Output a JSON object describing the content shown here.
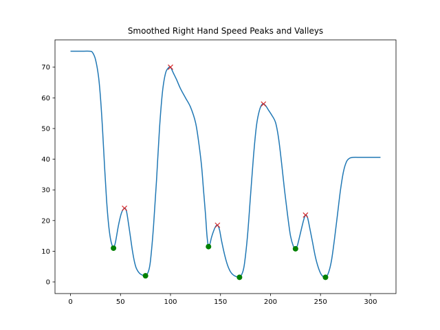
{
  "chart_data": {
    "type": "line",
    "title": "Smoothed Right Hand Speed Peaks and Valleys",
    "xlabel": "",
    "ylabel": "",
    "xlim": [
      -15.5,
      325.5
    ],
    "ylim": [
      -3.8,
      78.9
    ],
    "x_ticks": [
      0,
      50,
      100,
      150,
      200,
      250,
      300
    ],
    "y_ticks": [
      0,
      10,
      20,
      30,
      40,
      50,
      60,
      70
    ],
    "grid": false,
    "legend": "none",
    "series": [
      {
        "type": "line",
        "color": "#1f77b4",
        "points": [
          [
            0,
            75.2
          ],
          [
            10,
            75.2
          ],
          [
            19,
            75.2
          ],
          [
            22,
            74.8
          ],
          [
            25,
            72.5
          ],
          [
            28,
            67
          ],
          [
            30,
            60
          ],
          [
            32,
            50
          ],
          [
            34,
            38
          ],
          [
            36,
            27
          ],
          [
            38,
            19
          ],
          [
            40,
            14
          ],
          [
            42,
            11.5
          ],
          [
            43,
            11
          ],
          [
            45,
            13
          ],
          [
            48,
            18.5
          ],
          [
            51,
            22.5
          ],
          [
            54,
            24
          ],
          [
            56,
            23
          ],
          [
            58,
            19
          ],
          [
            60,
            14.5
          ],
          [
            62,
            10
          ],
          [
            64,
            6.5
          ],
          [
            66,
            4.3
          ],
          [
            69,
            2.8
          ],
          [
            72,
            2.2
          ],
          [
            75,
            2
          ],
          [
            78,
            3.5
          ],
          [
            80,
            7
          ],
          [
            83,
            18
          ],
          [
            86,
            33
          ],
          [
            89,
            50
          ],
          [
            92,
            62
          ],
          [
            95,
            68
          ],
          [
            98,
            69.8
          ],
          [
            100,
            70
          ],
          [
            103,
            68
          ],
          [
            106,
            66
          ],
          [
            110,
            63
          ],
          [
            115,
            60
          ],
          [
            120,
            57
          ],
          [
            125,
            52
          ],
          [
            128,
            46
          ],
          [
            131,
            38
          ],
          [
            133,
            30
          ],
          [
            135,
            22
          ],
          [
            136.5,
            15
          ],
          [
            138,
            11.5
          ],
          [
            139.5,
            12.5
          ],
          [
            141,
            14.5
          ],
          [
            143,
            16.5
          ],
          [
            145,
            18
          ],
          [
            147,
            18.5
          ],
          [
            149,
            17
          ],
          [
            151,
            13.5
          ],
          [
            154,
            9
          ],
          [
            157,
            5.5
          ],
          [
            160,
            3.3
          ],
          [
            163,
            2.2
          ],
          [
            166,
            1.7
          ],
          [
            169,
            1.5
          ],
          [
            172,
            3
          ],
          [
            174,
            6
          ],
          [
            177,
            15
          ],
          [
            180,
            28
          ],
          [
            183,
            41
          ],
          [
            186,
            51
          ],
          [
            189,
            56
          ],
          [
            192,
            58
          ],
          [
            195,
            57.5
          ],
          [
            198,
            56
          ],
          [
            201,
            54.5
          ],
          [
            205,
            52
          ],
          [
            208,
            47
          ],
          [
            211,
            39
          ],
          [
            214,
            30
          ],
          [
            217,
            22
          ],
          [
            220,
            15
          ],
          [
            223,
            11.5
          ],
          [
            225,
            10.8
          ],
          [
            227,
            12
          ],
          [
            230,
            16
          ],
          [
            233,
            20
          ],
          [
            235,
            21.8
          ],
          [
            237,
            21
          ],
          [
            239,
            18
          ],
          [
            242,
            13
          ],
          [
            245,
            8
          ],
          [
            248,
            4.5
          ],
          [
            251,
            2.3
          ],
          [
            255,
            1.5
          ],
          [
            258,
            3
          ],
          [
            261,
            7
          ],
          [
            264,
            14
          ],
          [
            267,
            22
          ],
          [
            270,
            30
          ],
          [
            273,
            36
          ],
          [
            276,
            39.2
          ],
          [
            279,
            40.3
          ],
          [
            283,
            40.6
          ],
          [
            290,
            40.6
          ],
          [
            300,
            40.6
          ],
          [
            310,
            40.6
          ]
        ]
      },
      {
        "type": "markers",
        "marker": "x",
        "color": "#d62728",
        "x": [
          54,
          100,
          147,
          193,
          235
        ],
        "y": [
          24,
          70,
          18.5,
          58,
          21.8
        ]
      },
      {
        "type": "markers",
        "marker": "o",
        "color": "#008000",
        "x": [
          43,
          75,
          138,
          169,
          225,
          255
        ],
        "y": [
          11,
          2,
          11.5,
          1.5,
          10.8,
          1.5
        ]
      }
    ]
  }
}
